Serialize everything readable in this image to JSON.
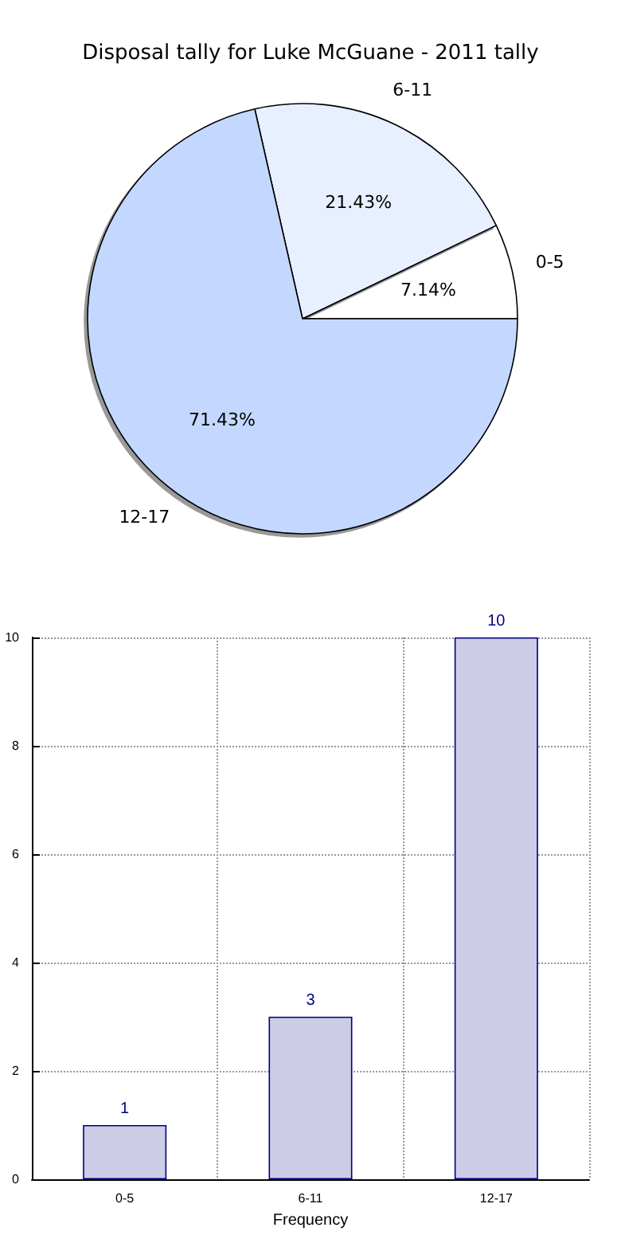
{
  "chart_data": [
    {
      "type": "pie",
      "title": "Disposal tally for Luke McGuane - 2011 tally",
      "categories": [
        "0-5",
        "6-11",
        "12-17"
      ],
      "values": [
        7.14,
        21.43,
        71.43
      ],
      "colors": [
        "#ffffff",
        "#e8f0ff",
        "#c4d8ff"
      ],
      "value_labels": [
        "7.14%",
        "21.43%",
        "71.43%"
      ]
    },
    {
      "type": "bar",
      "categories": [
        "0-5",
        "6-11",
        "12-17"
      ],
      "values": [
        1,
        3,
        10
      ],
      "color": "#cccce6",
      "xlabel": "Frequency",
      "ylim": [
        0,
        10
      ],
      "yticks": [
        0,
        2,
        4,
        6,
        8,
        10
      ],
      "grid": true,
      "data_labels": true
    }
  ]
}
